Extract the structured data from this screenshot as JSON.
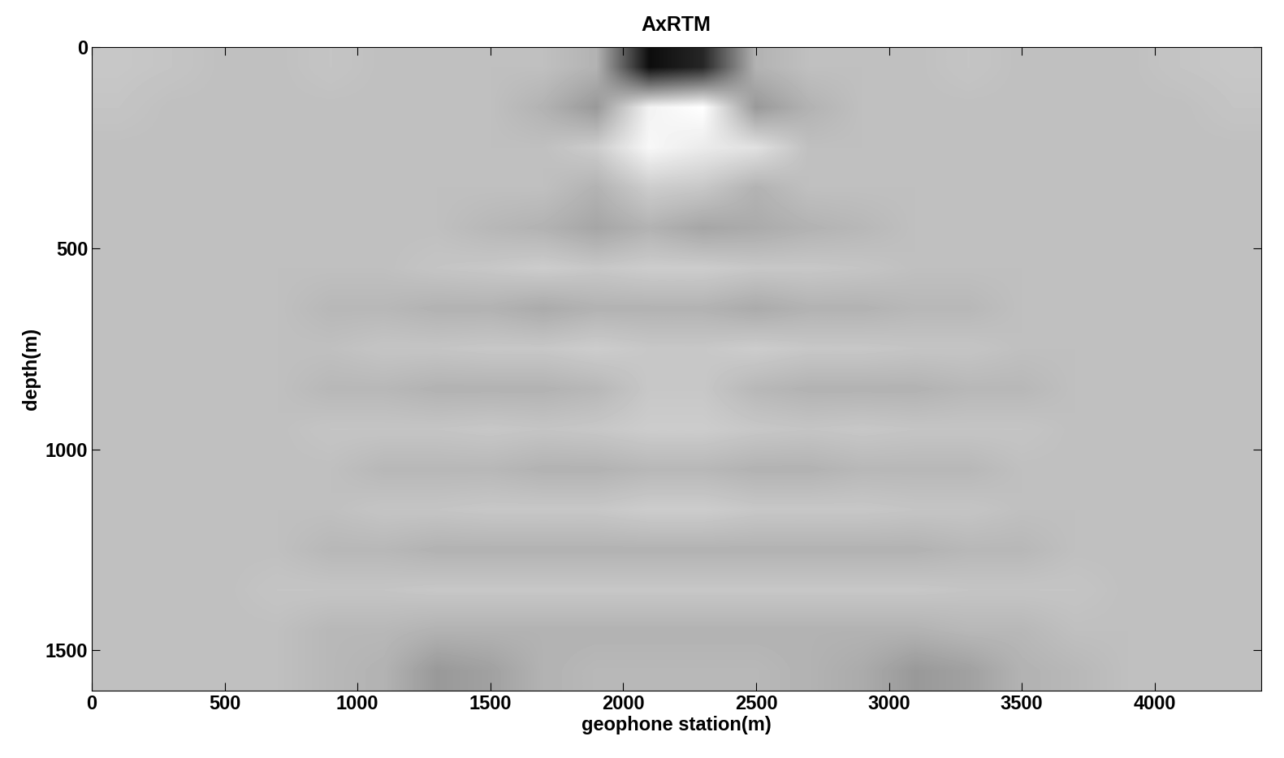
{
  "chart_data": {
    "type": "heatmap",
    "title": "AxRTM",
    "x_label": "geophone station(m)",
    "y_label": "depth(m)",
    "xlim": [
      0,
      4400
    ],
    "ylim": [
      1600,
      0
    ],
    "xticks": [
      0,
      500,
      1000,
      1500,
      2000,
      2500,
      3000,
      3500,
      4000
    ],
    "yticks": [
      0,
      500,
      1000,
      1500
    ],
    "color": "gray",
    "zlim": [
      0,
      1
    ],
    "tick_labels": true,
    "cells": [
      [
        0.78,
        0.77,
        0.75,
        0.75,
        0.77,
        0.75,
        0.75,
        0.75,
        0.75,
        0.7,
        0.05,
        0.15,
        0.7,
        0.75,
        0.75,
        0.75,
        0.77,
        0.75,
        0.75,
        0.75,
        0.77,
        0.78
      ],
      [
        0.77,
        0.75,
        0.75,
        0.75,
        0.75,
        0.75,
        0.75,
        0.75,
        0.7,
        0.6,
        0.95,
        1.0,
        0.6,
        0.7,
        0.75,
        0.75,
        0.75,
        0.75,
        0.75,
        0.75,
        0.75,
        0.77
      ],
      [
        0.75,
        0.75,
        0.75,
        0.75,
        0.75,
        0.75,
        0.75,
        0.75,
        0.75,
        0.8,
        0.97,
        0.92,
        0.88,
        0.75,
        0.75,
        0.75,
        0.75,
        0.75,
        0.75,
        0.75,
        0.75,
        0.75
      ],
      [
        0.75,
        0.75,
        0.75,
        0.75,
        0.75,
        0.75,
        0.75,
        0.75,
        0.75,
        0.7,
        0.8,
        0.78,
        0.7,
        0.75,
        0.75,
        0.75,
        0.75,
        0.75,
        0.75,
        0.75,
        0.75,
        0.75
      ],
      [
        0.75,
        0.75,
        0.75,
        0.75,
        0.75,
        0.75,
        0.75,
        0.72,
        0.7,
        0.65,
        0.7,
        0.65,
        0.67,
        0.7,
        0.72,
        0.75,
        0.75,
        0.75,
        0.75,
        0.75,
        0.75,
        0.75
      ],
      [
        0.75,
        0.75,
        0.75,
        0.75,
        0.75,
        0.75,
        0.77,
        0.78,
        0.8,
        0.78,
        0.8,
        0.8,
        0.78,
        0.78,
        0.77,
        0.75,
        0.75,
        0.75,
        0.75,
        0.75,
        0.75,
        0.75
      ],
      [
        0.75,
        0.75,
        0.75,
        0.75,
        0.72,
        0.72,
        0.7,
        0.7,
        0.67,
        0.7,
        0.7,
        0.7,
        0.67,
        0.7,
        0.7,
        0.72,
        0.72,
        0.75,
        0.75,
        0.75,
        0.75,
        0.75
      ],
      [
        0.75,
        0.75,
        0.75,
        0.75,
        0.75,
        0.77,
        0.77,
        0.78,
        0.78,
        0.8,
        0.78,
        0.78,
        0.8,
        0.78,
        0.78,
        0.77,
        0.77,
        0.75,
        0.75,
        0.75,
        0.75,
        0.75
      ],
      [
        0.75,
        0.75,
        0.75,
        0.75,
        0.72,
        0.72,
        0.7,
        0.7,
        0.7,
        0.72,
        0.78,
        0.78,
        0.72,
        0.7,
        0.7,
        0.7,
        0.72,
        0.72,
        0.75,
        0.75,
        0.75,
        0.75
      ],
      [
        0.75,
        0.75,
        0.75,
        0.75,
        0.77,
        0.77,
        0.77,
        0.78,
        0.77,
        0.78,
        0.8,
        0.8,
        0.78,
        0.77,
        0.78,
        0.77,
        0.77,
        0.77,
        0.75,
        0.75,
        0.75,
        0.75
      ],
      [
        0.75,
        0.75,
        0.75,
        0.75,
        0.75,
        0.72,
        0.72,
        0.72,
        0.7,
        0.7,
        0.72,
        0.72,
        0.7,
        0.7,
        0.72,
        0.72,
        0.72,
        0.75,
        0.75,
        0.75,
        0.75,
        0.75
      ],
      [
        0.75,
        0.75,
        0.75,
        0.75,
        0.75,
        0.77,
        0.77,
        0.78,
        0.78,
        0.78,
        0.8,
        0.8,
        0.78,
        0.78,
        0.78,
        0.77,
        0.77,
        0.75,
        0.75,
        0.75,
        0.75,
        0.75
      ],
      [
        0.75,
        0.75,
        0.75,
        0.75,
        0.72,
        0.72,
        0.7,
        0.7,
        0.7,
        0.7,
        0.7,
        0.7,
        0.7,
        0.7,
        0.7,
        0.7,
        0.72,
        0.72,
        0.75,
        0.75,
        0.75,
        0.75
      ],
      [
        0.75,
        0.75,
        0.75,
        0.77,
        0.77,
        0.77,
        0.78,
        0.78,
        0.78,
        0.78,
        0.78,
        0.78,
        0.78,
        0.78,
        0.78,
        0.78,
        0.77,
        0.77,
        0.77,
        0.75,
        0.75,
        0.75
      ],
      [
        0.75,
        0.75,
        0.75,
        0.75,
        0.72,
        0.72,
        0.7,
        0.7,
        0.7,
        0.7,
        0.7,
        0.7,
        0.7,
        0.7,
        0.7,
        0.7,
        0.72,
        0.72,
        0.75,
        0.75,
        0.75,
        0.75
      ],
      [
        0.75,
        0.75,
        0.75,
        0.75,
        0.72,
        0.7,
        0.6,
        0.63,
        0.7,
        0.72,
        0.72,
        0.72,
        0.72,
        0.7,
        0.67,
        0.6,
        0.63,
        0.7,
        0.72,
        0.75,
        0.75,
        0.75
      ]
    ]
  }
}
